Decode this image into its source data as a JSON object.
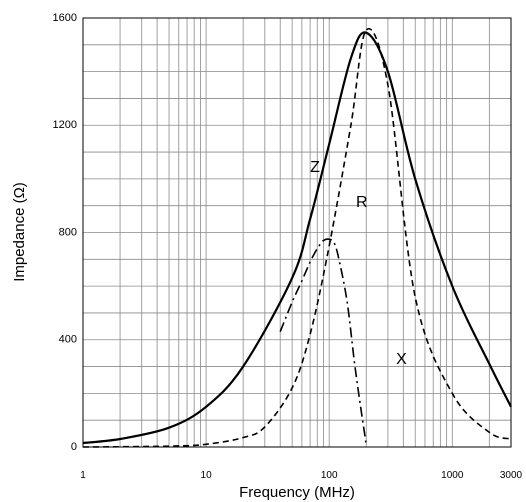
{
  "chart_data": {
    "type": "line",
    "xlabel": "Frequency (MHz)",
    "ylabel": "Impedance (Ω)",
    "x_scale": "log",
    "xlim": [
      1,
      3000
    ],
    "ylim": [
      0,
      1600
    ],
    "x_ticks": [
      {
        "value": 1,
        "label": "1"
      },
      {
        "value": 10,
        "label": "10"
      },
      {
        "value": 100,
        "label": "100"
      },
      {
        "value": 1000,
        "label": "1000"
      },
      {
        "value": 3000,
        "label": "3000"
      }
    ],
    "y_ticks": [
      {
        "value": 0,
        "label": "0"
      },
      {
        "value": 400,
        "label": "400"
      },
      {
        "value": 800,
        "label": "800"
      },
      {
        "value": 1200,
        "label": "1200"
      },
      {
        "value": 1600,
        "label": "1600"
      }
    ],
    "grid": true,
    "series": [
      {
        "name": "Z",
        "style": "solid",
        "color": "#000000",
        "x": [
          1,
          2,
          5,
          10,
          20,
          50,
          70,
          100,
          150,
          200,
          300,
          500,
          1000,
          2000,
          3000
        ],
        "y": [
          15,
          30,
          72,
          150,
          300,
          630,
          850,
          1130,
          1450,
          1545,
          1400,
          1000,
          600,
          310,
          150
        ]
      },
      {
        "name": "R",
        "style": "dashed",
        "color": "#000000",
        "x": [
          1,
          5,
          10,
          20,
          30,
          50,
          70,
          100,
          150,
          200,
          300,
          500,
          1000,
          2000,
          3000
        ],
        "y": [
          0,
          3,
          10,
          35,
          75,
          220,
          420,
          750,
          1200,
          1555,
          1350,
          560,
          200,
          55,
          30
        ]
      },
      {
        "name": "X",
        "style": "dashdot",
        "color": "#000000",
        "x": [
          40,
          50,
          60,
          70,
          80,
          90,
          100,
          110,
          120,
          140,
          160,
          180,
          200
        ],
        "y": [
          430,
          540,
          620,
          690,
          740,
          770,
          775,
          760,
          700,
          540,
          320,
          150,
          10
        ]
      }
    ],
    "series_labels": [
      {
        "series": "Z",
        "text": "Z",
        "x": 70,
        "y": 1025
      },
      {
        "series": "R",
        "text": "R",
        "x": 165,
        "y": 895
      },
      {
        "series": "X",
        "text": "X",
        "x": 350,
        "y": 310
      }
    ]
  }
}
